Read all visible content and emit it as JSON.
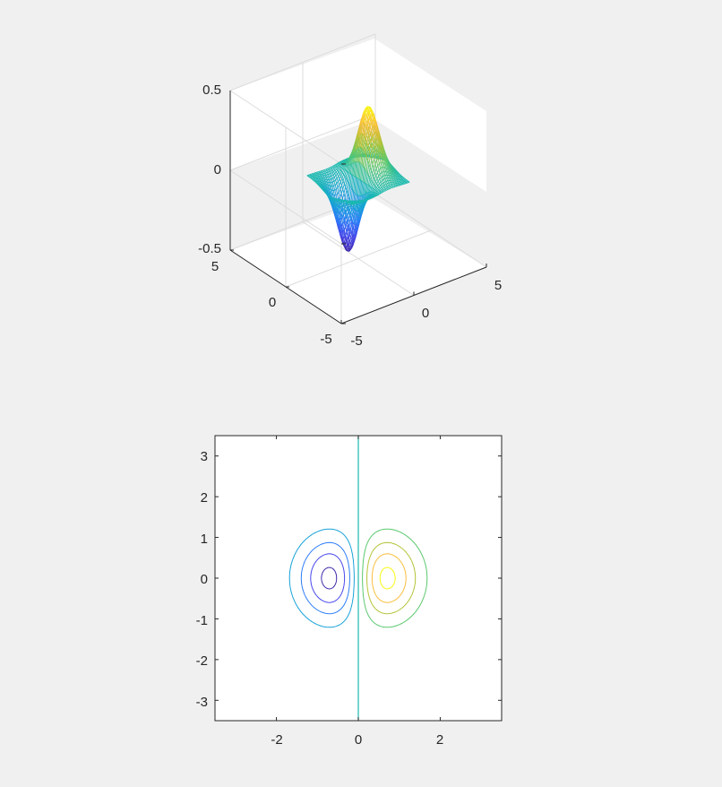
{
  "chart_data": [
    {
      "type": "surface",
      "description_free": true,
      "function": "z = x * exp(-x^2 - y^2)",
      "x_range": [
        -2,
        2
      ],
      "y_range": [
        -2,
        2
      ],
      "grid_step": 0.1,
      "xlim": [
        -5,
        5
      ],
      "ylim": [
        -5,
        5
      ],
      "zlim": [
        -0.5,
        0.5
      ],
      "x_ticks": [
        "-5",
        "0",
        "5"
      ],
      "y_ticks": [
        "-5",
        "0",
        "5"
      ],
      "z_ticks": [
        "-0.5",
        "0",
        "0.5"
      ],
      "view": {
        "azimuth": -37.5,
        "elevation": 30
      },
      "grid": true,
      "colormap": "parula"
    },
    {
      "type": "contour",
      "function": "z = x * exp(-x^2 - y^2)",
      "xlim": [
        -3.5,
        3.5
      ],
      "ylim": [
        -3.5,
        3.5
      ],
      "x_ticks": [
        "-2",
        "0",
        "2"
      ],
      "y_ticks": [
        "3",
        "2",
        "1",
        "0",
        "-1",
        "-2",
        "-3"
      ],
      "levels": [
        -0.4,
        -0.3,
        -0.2,
        -0.1,
        0,
        0.1,
        0.2,
        0.3,
        0.4
      ],
      "grid": false
    }
  ],
  "colors": {
    "background": "#f0f0f0",
    "axes_background": "#ffffff",
    "axis_color": "#262626",
    "grid_color": "#dcdcdc"
  }
}
